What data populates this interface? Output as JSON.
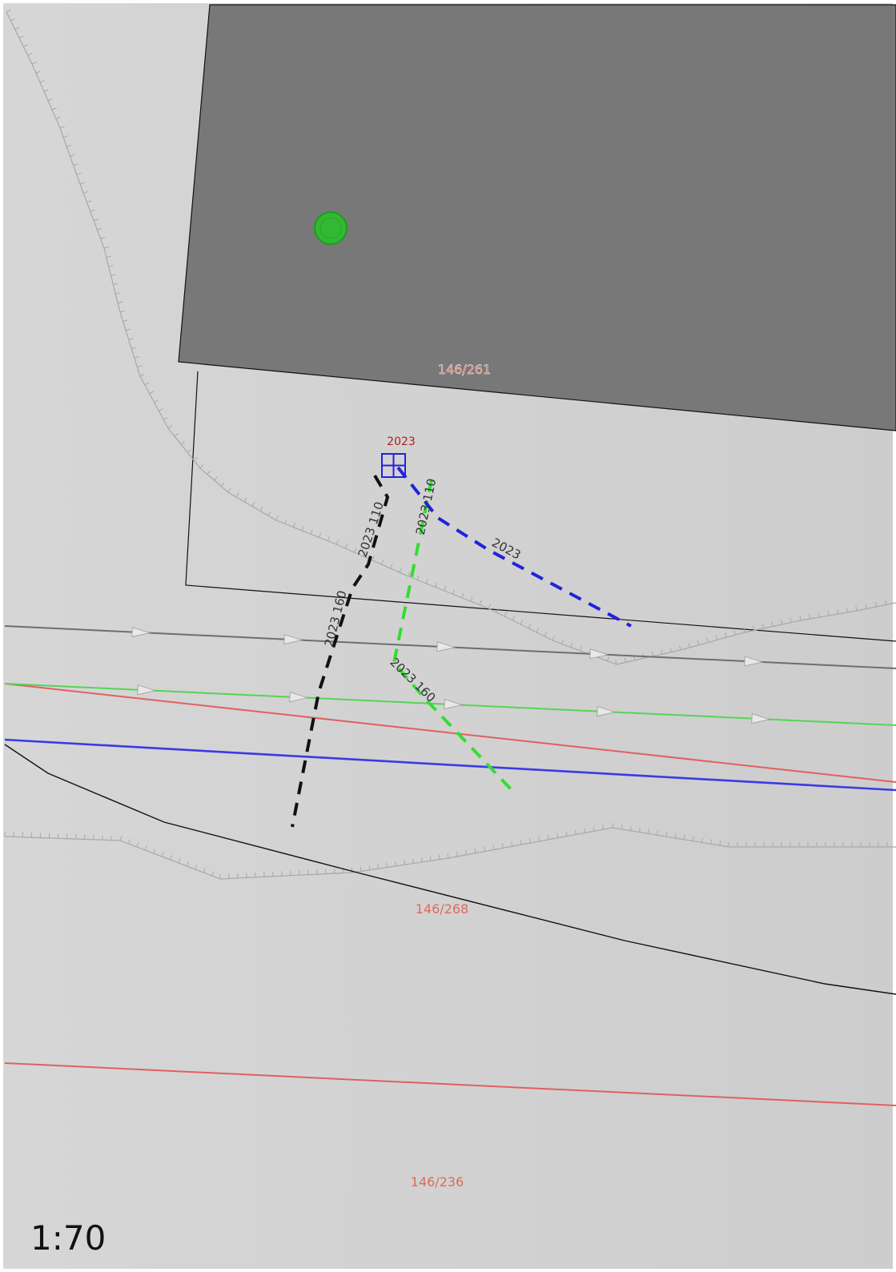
{
  "map": {
    "scale": "1:70",
    "colors": {
      "background": "#d0d0d0",
      "building": "#787878",
      "parcel_label": "#e06a5a",
      "point_label": "#b02020",
      "blue": "#2222dd",
      "green": "#33dd33",
      "red_line": "#e06060",
      "gray_line": "#6e6e6e"
    },
    "parcels": [
      {
        "label": "146/261"
      },
      {
        "label": "146/268"
      },
      {
        "label": "146/236"
      }
    ],
    "connection_point": {
      "label": "2023",
      "icon": "window-grid-icon"
    },
    "segment_labels": {
      "black_upper": "2023 110",
      "black_lower": "2023 160",
      "green_upper": "2023 110",
      "green_lower": "2023 160",
      "blue": "2023"
    },
    "marker": {
      "icon": "green-circle-marker-icon"
    }
  }
}
